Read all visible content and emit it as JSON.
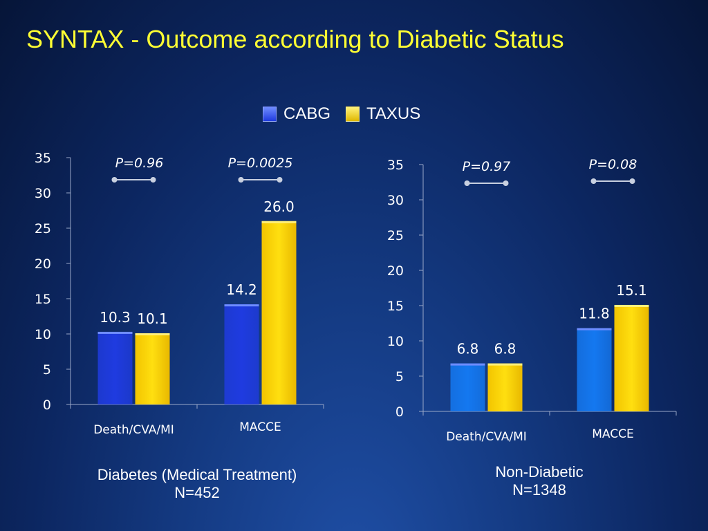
{
  "title": "SYNTAX - Outcome according to Diabetic Status",
  "legend": [
    {
      "label": "CABG",
      "color": "#2a52e8"
    },
    {
      "label": "TAXUS",
      "color": "#ffd700"
    }
  ],
  "colors": {
    "left_cabg": "#1f3be0",
    "right_cabg": "#1478f0",
    "taxus": "#ffd700"
  },
  "chart_data": [
    {
      "type": "bar",
      "categories": [
        "Death/CVA/MI",
        "MACCE"
      ],
      "series": [
        {
          "name": "CABG",
          "values": [
            10.3,
            14.2
          ]
        },
        {
          "name": "TAXUS",
          "values": [
            10.1,
            26.0
          ]
        }
      ],
      "data_labels": [
        [
          "10.3",
          "10.1"
        ],
        [
          "14.2",
          "26.0"
        ]
      ],
      "ylim": [
        0,
        35
      ],
      "yticks": [
        "0",
        "5",
        "10",
        "15",
        "20",
        "25",
        "30",
        "35"
      ],
      "pvalues": [
        "P=0.96",
        "P=0.0025"
      ],
      "caption": [
        "Diabetes (Medical Treatment)",
        "N=452"
      ]
    },
    {
      "type": "bar",
      "categories": [
        "Death/CVA/MI",
        "MACCE"
      ],
      "series": [
        {
          "name": "CABG",
          "values": [
            6.8,
            11.8
          ]
        },
        {
          "name": "TAXUS",
          "values": [
            6.8,
            15.1
          ]
        }
      ],
      "data_labels": [
        [
          "6.8",
          "6.8"
        ],
        [
          "11.8",
          "15.1"
        ]
      ],
      "ylim": [
        0,
        35
      ],
      "yticks": [
        "0",
        "5",
        "10",
        "15",
        "20",
        "25",
        "30",
        "35"
      ],
      "pvalues": [
        "P=0.97",
        "P=0.08"
      ],
      "caption": [
        "Non-Diabetic",
        "N=1348"
      ]
    }
  ]
}
